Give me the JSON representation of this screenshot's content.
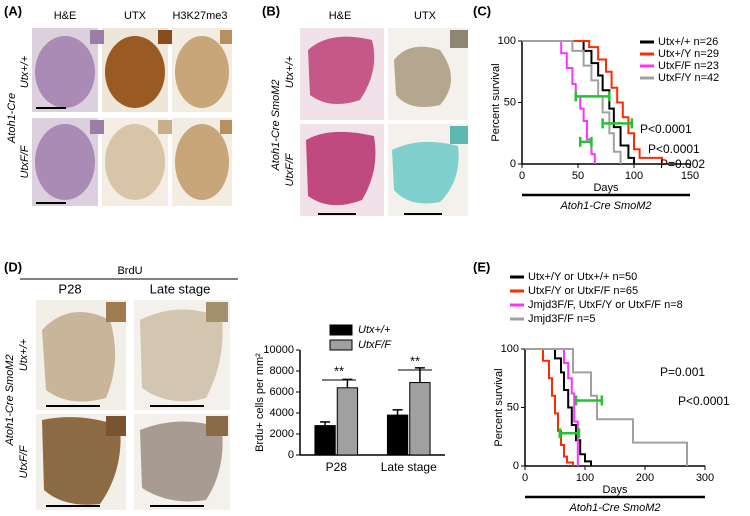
{
  "panel_labels": [
    "(A)",
    "(B)",
    "(C)",
    "(D)",
    "(E)"
  ],
  "panel_a": {
    "columns": [
      "H&E",
      "UTX",
      "H3K27me3"
    ],
    "genotype": "Atoh1-Cre",
    "rows": [
      "Utx+/+",
      "UtxF/F"
    ]
  },
  "panel_b": {
    "columns": [
      "H&E",
      "UTX"
    ],
    "genotype": "Atoh1-Cre SmoM2",
    "rows": [
      "Utx+/+",
      "UtxF/F"
    ]
  },
  "panel_d": {
    "stain": "BrdU",
    "columns": [
      "P28",
      "Late stage"
    ],
    "genotype": "Atoh1-Cre SmoM2",
    "rows": [
      "Utx+/+",
      "UtxF/F"
    ]
  },
  "chart_data": [
    {
      "type": "step",
      "xlabel": "Days",
      "ylabel": "Percent survival",
      "subtitle": "Atoh1-Cre SmoM2",
      "xlim": [
        0,
        150
      ],
      "xticks": [
        0,
        50,
        100,
        150
      ],
      "ylim": [
        0,
        100
      ],
      "yticks": [
        0,
        50,
        100
      ],
      "series": [
        {
          "name": "Utx+/+ n=26",
          "color": "#000000",
          "x": [
            0,
            55,
            62,
            68,
            72,
            78,
            82,
            88,
            95,
            100
          ],
          "values": [
            100,
            92,
            82,
            72,
            60,
            45,
            30,
            15,
            5,
            0
          ]
        },
        {
          "name": "Utx+/Y n=29",
          "color": "#ff2a00",
          "x": [
            0,
            60,
            68,
            75,
            80,
            85,
            90,
            95,
            100,
            105,
            125
          ],
          "values": [
            100,
            95,
            85,
            75,
            62,
            50,
            38,
            25,
            12,
            5,
            0
          ]
        },
        {
          "name": "UtxF/F n=23",
          "color": "#ff33ff",
          "x": [
            0,
            35,
            40,
            45,
            48,
            52,
            55,
            58,
            62,
            65
          ],
          "values": [
            100,
            90,
            78,
            65,
            55,
            45,
            35,
            20,
            8,
            0
          ]
        },
        {
          "name": "UtxF/Y n=42",
          "color": "#a0a0a0",
          "x": [
            0,
            45,
            55,
            62,
            68,
            72,
            78,
            82,
            88
          ],
          "values": [
            100,
            92,
            80,
            68,
            55,
            42,
            25,
            10,
            0
          ]
        }
      ],
      "error_bars": [
        {
          "y": 55,
          "low": 48,
          "high": 78
        },
        {
          "y": 33,
          "low": 72,
          "high": 98
        },
        {
          "y": 18,
          "low": 52,
          "high": 62
        }
      ],
      "error_color": "#22c32e",
      "annotations": [
        "P<0.0001",
        "P<0.0001",
        "P=0.002"
      ]
    },
    {
      "type": "bar",
      "ylabel": "Brdu+ cells per mm²",
      "categories": [
        "P28",
        "Late stage"
      ],
      "ylim": [
        0,
        10000
      ],
      "yticks": [
        0,
        2000,
        4000,
        6000,
        8000,
        10000
      ],
      "series": [
        {
          "name": "Utx+/+",
          "color": "#000000",
          "values": [
            2800,
            3800
          ],
          "errors": [
            350,
            500
          ]
        },
        {
          "name": "UtxF/F",
          "color": "#a0a0a0",
          "values": [
            6400,
            6900
          ],
          "errors": [
            800,
            1400
          ]
        }
      ],
      "annotations": [
        "**",
        "**"
      ]
    },
    {
      "type": "step",
      "xlabel": "Days",
      "ylabel": "Percent survival",
      "subtitle": "Atoh1-Cre SmoM2",
      "xlim": [
        0,
        300
      ],
      "xticks": [
        0,
        100,
        200,
        300
      ],
      "ylim": [
        0,
        100
      ],
      "yticks": [
        0,
        50,
        100
      ],
      "series": [
        {
          "name": "Utx+/Y or Utx+/+ n=50",
          "color": "#000000",
          "x": [
            0,
            50,
            60,
            65,
            72,
            78,
            85,
            92,
            100,
            110
          ],
          "values": [
            100,
            92,
            80,
            65,
            50,
            35,
            22,
            10,
            4,
            0
          ]
        },
        {
          "name": "UtxF/Y or UtxF/F n=65",
          "color": "#ff2a00",
          "x": [
            0,
            30,
            40,
            45,
            50,
            55,
            60,
            65,
            70,
            80
          ],
          "values": [
            100,
            90,
            75,
            60,
            45,
            30,
            18,
            8,
            3,
            0
          ]
        },
        {
          "name": "Jmjd3F/F, UtxF/Y or UtxF/F n=8",
          "color": "#ff33ff",
          "x": [
            0,
            65,
            72,
            78,
            82,
            88
          ],
          "values": [
            100,
            88,
            75,
            62,
            38,
            0
          ]
        },
        {
          "name": "Jmjd3F/F n=5",
          "color": "#a0a0a0",
          "x": [
            0,
            80,
            110,
            120,
            180,
            270
          ],
          "values": [
            100,
            80,
            60,
            40,
            20,
            0
          ]
        }
      ],
      "error_bars": [
        {
          "y": 56,
          "low": 85,
          "high": 128
        },
        {
          "y": 28,
          "low": 58,
          "high": 90
        }
      ],
      "error_color": "#22c32e",
      "annotations": [
        "P=0.001",
        "P<0.0001"
      ]
    }
  ]
}
